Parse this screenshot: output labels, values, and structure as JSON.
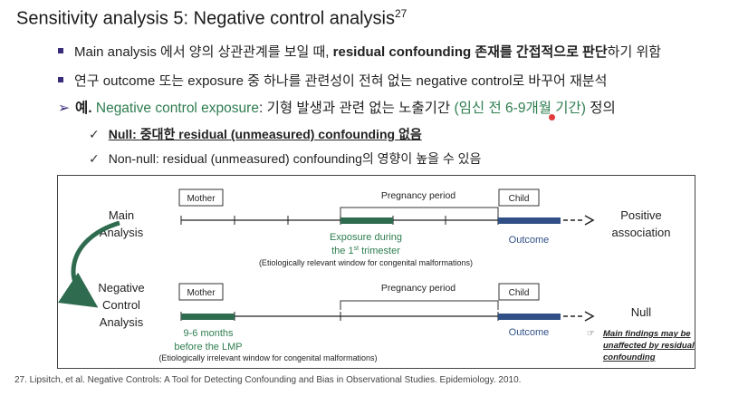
{
  "title": {
    "text": "Sensitivity analysis 5: Negative control analysis",
    "sup": "27"
  },
  "b1": {
    "pre": "Main analysis 에서 양의 상관관계를 보일 때, ",
    "bold": "residual confounding 존재를 간접적으로 판단",
    "post": "하기 위함"
  },
  "b2": {
    "text": "연구 outcome 또는 exposure 중 하나를 관련성이 전혀 없는 negative control로 바꾸어 재분석"
  },
  "b3": {
    "pre": "예. ",
    "green": "Negative control exposure",
    "mid": ": 기형 발생과 관련 없는 노출기간 ",
    "green2": "(임신 전 6-9개월 기간)",
    "post": " 정의"
  },
  "c1": {
    "text": "Null: 중대한 residual (unmeasured) confounding 없음"
  },
  "c2": {
    "text": "Non-null: residual (unmeasured) confounding의 영향이 높을 수 있음"
  },
  "diagram": {
    "main_label_1": "Main",
    "main_label_2": "Analysis",
    "neg_label_1": "Negative",
    "neg_label_2": "Control",
    "neg_label_3": "Analysis",
    "mother": "Mother",
    "child": "Child",
    "pregnancy": "Pregnancy period",
    "exposure_1": "Exposure during",
    "exposure_2a": "the 1",
    "exposure_2sup": "st",
    "exposure_2b": " trimester",
    "window_rel": "(Etiologically relevant window for congenital malformations)",
    "window_irr": "(Etiologically irrelevant window for congenital malformations)",
    "outcome": "Outcome",
    "positive_1": "Positive",
    "positive_2": "association",
    "null": "Null",
    "months_1": "9-6 months",
    "months_2": "before the LMP",
    "note_1": "Main findings may be",
    "note_2": "unaffected by residual",
    "note_3": "confounding",
    "green": "#2e6b4f",
    "blue": "#2f4f86"
  },
  "footnote": "27. Lipsitch, et al. Negative Controls: A Tool for Detecting Confounding and Bias in Observational Studies. Epidemiology. 2010."
}
